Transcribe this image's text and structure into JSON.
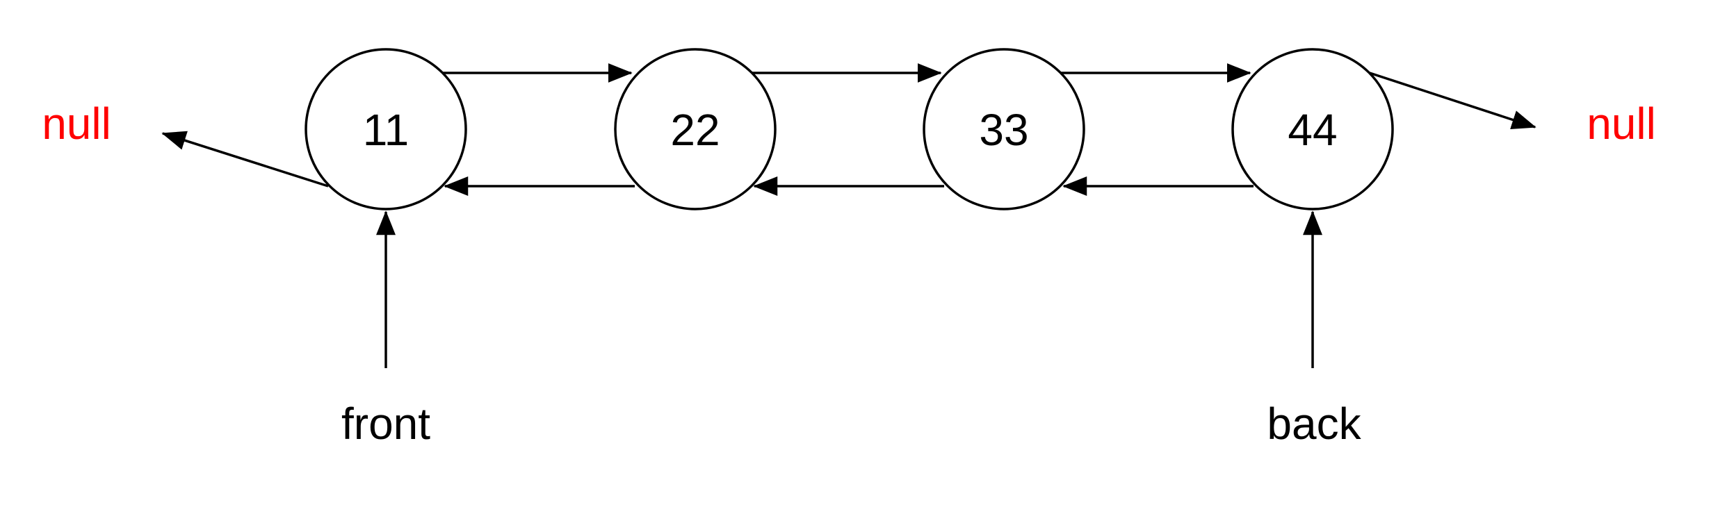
{
  "nodes": [
    {
      "value": "11"
    },
    {
      "value": "22"
    },
    {
      "value": "33"
    },
    {
      "value": "44"
    }
  ],
  "null_left": "null",
  "null_right": "null",
  "front_label": "front",
  "back_label": "back",
  "colors": {
    "null_text": "#ff0000",
    "stroke": "#000000",
    "text": "#000000"
  }
}
